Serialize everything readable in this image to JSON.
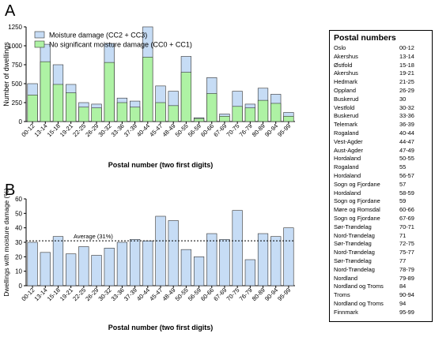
{
  "panels": {
    "a": "A",
    "b": "B"
  },
  "postal_table": {
    "title": "Postal numbers",
    "rows": [
      {
        "region": "Oslo",
        "code": "00-12"
      },
      {
        "region": "Akershus",
        "code": "13-14"
      },
      {
        "region": "Østfold",
        "code": "15-18"
      },
      {
        "region": "Akershus",
        "code": "19-21"
      },
      {
        "region": "Hedmark",
        "code": "21-25"
      },
      {
        "region": "Oppland",
        "code": "26-29"
      },
      {
        "region": "Buskerud",
        "code": "30"
      },
      {
        "region": "Vestfold",
        "code": "30-32"
      },
      {
        "region": "Buskerud",
        "code": "33-36"
      },
      {
        "region": "Telemark",
        "code": "36-39"
      },
      {
        "region": "Rogaland",
        "code": "40-44"
      },
      {
        "region": "Vest-Agder",
        "code": "44-47"
      },
      {
        "region": "Aust-Agder",
        "code": "47-49"
      },
      {
        "region": "Hordaland",
        "code": "50-55"
      },
      {
        "region": "Rogaland",
        "code": "55"
      },
      {
        "region": "Hordaland",
        "code": "56-57"
      },
      {
        "region": "Sogn og Fjordane",
        "code": "57"
      },
      {
        "region": "Hordaland",
        "code": "58-59"
      },
      {
        "region": "Sogn og Fjordane",
        "code": "59"
      },
      {
        "region": "Møre og Romsdal",
        "code": "60-66"
      },
      {
        "region": "Sogn og Fjordane",
        "code": "67-69"
      },
      {
        "region": "Sør-Trøndelag",
        "code": "70-71"
      },
      {
        "region": "Nord-Trøndelag",
        "code": "71"
      },
      {
        "region": "Sør-Trøndelag",
        "code": "72-75"
      },
      {
        "region": "Nord-Trøndelag",
        "code": "75-77"
      },
      {
        "region": "Sør-Trøndelag",
        "code": "77"
      },
      {
        "region": "Nord-Trøndelag",
        "code": "78-79"
      },
      {
        "region": "Nordland",
        "code": "79-89"
      },
      {
        "region": "Nordland og Troms",
        "code": "84"
      },
      {
        "region": "Troms",
        "code": "90-94"
      },
      {
        "region": "Nordland og Troms",
        "code": "94"
      },
      {
        "region": "Finnmark",
        "code": "95-99"
      }
    ]
  },
  "chart_data": [
    {
      "type": "bar",
      "stacked": false,
      "categories": [
        "00-12",
        "13-14",
        "15-18",
        "19-21",
        "22-25",
        "26-29",
        "30-32",
        "33-36",
        "37-39",
        "40-44",
        "45-47",
        "48-49",
        "50-55",
        "56-59",
        "60-66",
        "67-69",
        "70-75",
        "76-79",
        "80-89",
        "90-94",
        "95-99"
      ],
      "series": [
        {
          "name": "Moisture damage (CC2 + CC3)",
          "color": "#c6dcf5",
          "values": [
            500,
            1020,
            750,
            490,
            250,
            230,
            1030,
            310,
            270,
            1250,
            470,
            400,
            860,
            50,
            580,
            100,
            400,
            230,
            440,
            360,
            120
          ]
        },
        {
          "name": "No significant moisture damage (CC0 + CC1)",
          "color": "#aef2a4",
          "values": [
            350,
            790,
            490,
            380,
            190,
            180,
            780,
            250,
            190,
            850,
            250,
            210,
            650,
            40,
            370,
            70,
            200,
            180,
            280,
            240,
            70
          ]
        }
      ],
      "ylabel": "Number of dwellings",
      "xlabel": "Postal number (two first digits)",
      "ylim": [
        0,
        1250
      ],
      "yticks": [
        0,
        250,
        500,
        750,
        1000,
        1250
      ],
      "legend": "top-left"
    },
    {
      "type": "bar",
      "categories": [
        "00-12",
        "13-14",
        "15-18",
        "19-21",
        "22-25",
        "26-29",
        "30-32",
        "33-36",
        "37-39",
        "40-44",
        "45-47",
        "48-49",
        "50-55",
        "56-59",
        "60-66",
        "67-69",
        "70-75",
        "76-79",
        "80-89",
        "90-94",
        "95-99"
      ],
      "values": [
        30,
        23,
        34,
        22,
        27,
        21,
        26,
        30,
        32,
        31,
        48,
        45,
        25,
        20,
        36,
        32,
        52,
        18,
        36,
        34,
        40
      ],
      "color": "#c6dcf5",
      "ylabel": "Dwellings with moisture damage (%)",
      "xlabel": "Postal number (two first digits)",
      "ylim": [
        0,
        60
      ],
      "yticks": [
        0,
        10,
        20,
        30,
        40,
        50,
        60
      ],
      "reference_line": {
        "value": 31,
        "label": "Average (31%)"
      }
    }
  ]
}
